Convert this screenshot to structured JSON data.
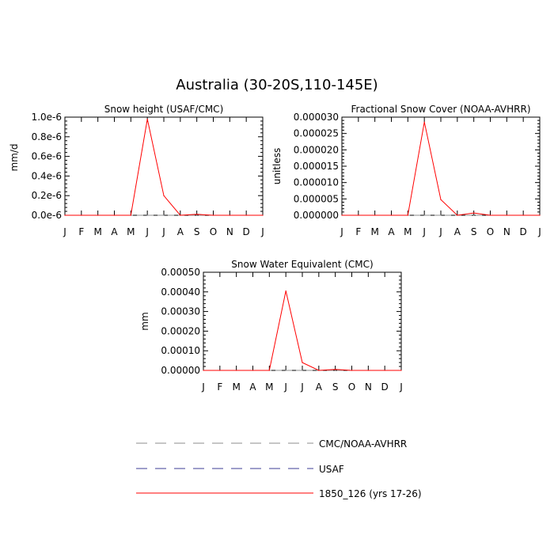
{
  "figure": {
    "title": "Australia (30-20S,110-145E)"
  },
  "colors": {
    "model": "#ff0000",
    "cmc": "#8c8c8c",
    "usaf": "#3c3c96",
    "axis": "#000000"
  },
  "chart_data": [
    {
      "type": "line",
      "title": "Snow height (USAF/CMC)",
      "ylabel": "mm/d",
      "xlabel": "",
      "categories": [
        "J",
        "F",
        "M",
        "A",
        "M",
        "J",
        "J",
        "A",
        "S",
        "O",
        "N",
        "D",
        "J"
      ],
      "ylim": [
        0,
        1e-06
      ],
      "yticks": [
        0,
        2e-07,
        4e-07,
        6e-07,
        8e-07,
        1e-06
      ],
      "ytick_labels": [
        "0.0e-6",
        "0.2e-6",
        "0.4e-6",
        "0.6e-6",
        "0.8e-6",
        "1.0e-6"
      ],
      "series": [
        {
          "name": "1850_126 (yrs 17-26)",
          "style": "solid",
          "color": "#ff0000",
          "values": [
            0,
            0,
            0,
            0,
            0,
            9.8e-07,
            2e-07,
            0,
            1e-08,
            0,
            0,
            0,
            0
          ]
        },
        {
          "name": "USAF",
          "style": "dashed",
          "color": "#3c3c96",
          "values": [
            0,
            0,
            0,
            0,
            0,
            0,
            0,
            0,
            0,
            0,
            0,
            0,
            0
          ]
        },
        {
          "name": "CMC/NOAA-AVHRR",
          "style": "dashed",
          "color": "#8c8c8c",
          "values": [
            0,
            0,
            0,
            0,
            0,
            0,
            0,
            0,
            0,
            0,
            0,
            0,
            0
          ]
        }
      ]
    },
    {
      "type": "line",
      "title": "Fractional Snow Cover (NOAA-AVHRR)",
      "ylabel": "unitless",
      "xlabel": "",
      "categories": [
        "J",
        "F",
        "M",
        "A",
        "M",
        "J",
        "J",
        "A",
        "S",
        "O",
        "N",
        "D",
        "J"
      ],
      "ylim": [
        0,
        3e-05
      ],
      "yticks": [
        0,
        5e-06,
        1e-05,
        1.5e-05,
        2e-05,
        2.5e-05,
        3e-05
      ],
      "ytick_labels": [
        "0.000000",
        "0.000005",
        "0.000010",
        "0.000015",
        "0.000020",
        "0.000025",
        "0.000030"
      ],
      "series": [
        {
          "name": "1850_126 (yrs 17-26)",
          "style": "solid",
          "color": "#ff0000",
          "values": [
            0,
            0,
            0,
            0,
            0,
            2.85e-05,
            4.8e-06,
            0,
            7e-07,
            0,
            0,
            0,
            0
          ]
        },
        {
          "name": "CMC/NOAA-AVHRR",
          "style": "dashed",
          "color": "#8c8c8c",
          "values": [
            0,
            0,
            0,
            0,
            0,
            0,
            0,
            0,
            0,
            0,
            0,
            0,
            0
          ]
        }
      ]
    },
    {
      "type": "line",
      "title": "Snow Water Equivalent (CMC)",
      "ylabel": "mm",
      "xlabel": "",
      "categories": [
        "J",
        "F",
        "M",
        "A",
        "M",
        "J",
        "J",
        "A",
        "S",
        "O",
        "N",
        "D",
        "J"
      ],
      "ylim": [
        0,
        0.0005
      ],
      "yticks": [
        0,
        0.0001,
        0.0002,
        0.0003,
        0.0004,
        0.0005
      ],
      "ytick_labels": [
        "0.00000",
        "0.00010",
        "0.00020",
        "0.00030",
        "0.00040",
        "0.00050"
      ],
      "series": [
        {
          "name": "1850_126 (yrs 17-26)",
          "style": "solid",
          "color": "#ff0000",
          "values": [
            0,
            0,
            0,
            0,
            0,
            0.000405,
            4e-05,
            0,
            5e-06,
            0,
            0,
            0,
            0
          ]
        },
        {
          "name": "CMC/NOAA-AVHRR",
          "style": "dashed",
          "color": "#8c8c8c",
          "values": [
            0,
            0,
            0,
            0,
            0,
            0,
            0,
            0,
            0,
            0,
            0,
            0,
            0
          ]
        }
      ]
    }
  ],
  "legend": [
    {
      "label": "CMC/NOAA-AVHRR",
      "style": "dashed",
      "color": "#8c8c8c"
    },
    {
      "label": "USAF",
      "style": "dashed",
      "color": "#3c3c96"
    },
    {
      "label": "1850_126 (yrs 17-26)",
      "style": "solid",
      "color": "#ff0000"
    }
  ]
}
